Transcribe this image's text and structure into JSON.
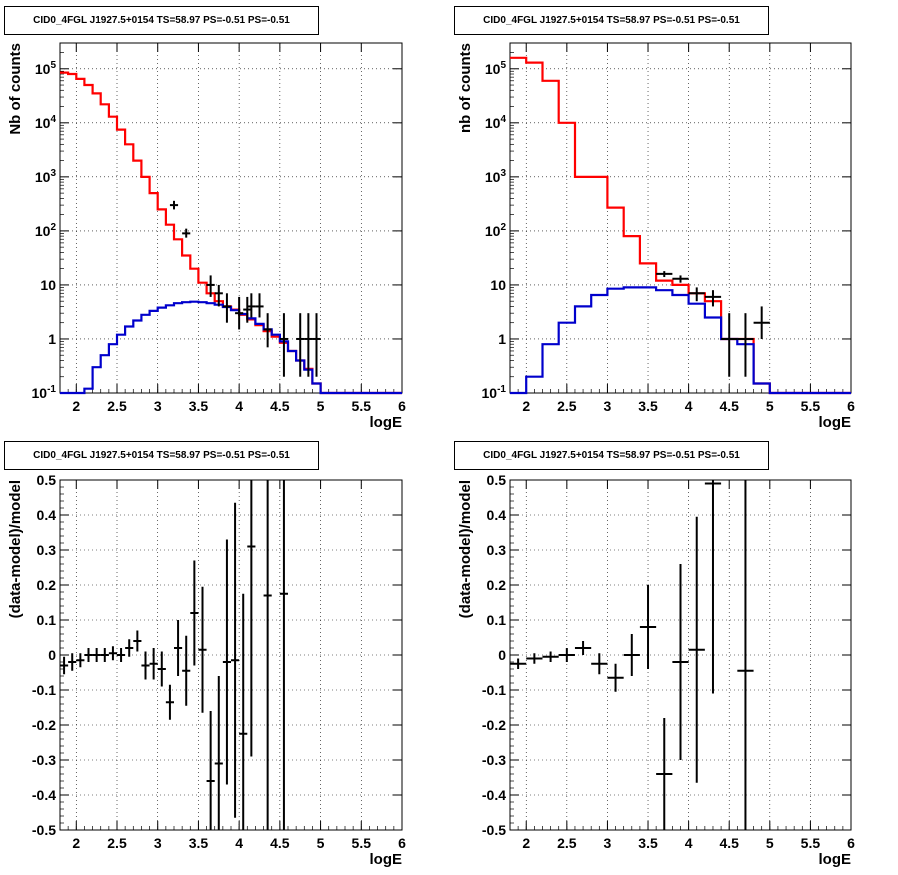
{
  "chart_data": [
    {
      "type": "line",
      "title": "CID0_4FGL J1927.5+0154 TS=58.97 PS=-0.51 PS=-0.51",
      "xlabel": "logE",
      "ylabel": "Nb of counts",
      "yscale": "log",
      "xlim": [
        1.8,
        6.0
      ],
      "ylim": [
        0.1,
        300000
      ],
      "grid": true,
      "x_ticks": [
        "2",
        "2.5",
        "3",
        "3.5",
        "4",
        "4.5",
        "5",
        "5.5",
        "6"
      ],
      "y_ticks": [
        "10^-1",
        "1",
        "10",
        "10^2",
        "10^3",
        "10^4",
        "10^5"
      ],
      "bin_edges": [
        1.8,
        1.9,
        2.0,
        2.1,
        2.2,
        2.3,
        2.4,
        2.5,
        2.6,
        2.7,
        2.8,
        2.9,
        3.0,
        3.1,
        3.2,
        3.3,
        3.4,
        3.5,
        3.6,
        3.7,
        3.8,
        3.9,
        4.0,
        4.1,
        4.2,
        4.3,
        4.4,
        4.5,
        4.6,
        4.7,
        4.8,
        4.9,
        5.0,
        5.1,
        5.2,
        5.3,
        5.4,
        5.5,
        5.6,
        5.7,
        5.8,
        5.9,
        6.0
      ],
      "series": [
        {
          "color": "#ff0000",
          "values": [
            85000,
            80000,
            65000,
            50000,
            35000,
            22000,
            13000,
            7500,
            4000,
            2000,
            1000,
            500,
            250,
            130,
            70,
            35,
            20,
            11,
            7,
            5,
            4,
            3.5,
            2.8,
            2.3,
            1.8,
            1.4,
            1.1,
            0.85,
            0.6,
            0.4,
            0.28,
            0.15,
            0.1,
            0.1,
            0.1,
            0.1,
            0.1,
            0.1,
            0.1,
            0.1,
            0.1,
            0.1
          ]
        },
        {
          "color": "#0000cc",
          "values": [
            0.06,
            0.08,
            0.1,
            0.12,
            0.3,
            0.5,
            0.8,
            1.2,
            1.7,
            2.2,
            2.8,
            3.3,
            3.8,
            4.2,
            4.6,
            4.8,
            4.9,
            4.8,
            4.6,
            4.3,
            3.9,
            3.4,
            2.9,
            2.4,
            1.9,
            1.5,
            1.2,
            0.9,
            0.6,
            0.4,
            0.27,
            0.15,
            0.1,
            0.1,
            0.1,
            0.1,
            0.1,
            0.1,
            0.1,
            0.1,
            0.1,
            0.1
          ]
        }
      ],
      "points": {
        "x": [
          3.2,
          3.35,
          3.65,
          3.75,
          3.85,
          4.0,
          4.1,
          4.15,
          4.25,
          4.35,
          4.55,
          4.75,
          4.85,
          4.95
        ],
        "y": [
          300,
          90,
          10,
          7,
          4,
          3,
          3.5,
          4,
          4,
          1.5,
          1,
          1,
          1,
          1
        ],
        "ylo": [
          250,
          75,
          6,
          4,
          2,
          1.5,
          2,
          2.5,
          2.5,
          0.7,
          0.2,
          0.2,
          0.2,
          0.2
        ],
        "yhi": [
          360,
          110,
          15,
          10,
          7,
          6,
          6,
          7,
          7,
          3,
          3,
          3,
          3,
          3
        ],
        "xerr": 0.05
      }
    },
    {
      "type": "line",
      "title": "CID0_4FGL J1927.5+0154 TS=58.97 PS=-0.51 PS=-0.51",
      "xlabel": "logE",
      "ylabel": "nb of counts",
      "yscale": "log",
      "xlim": [
        1.8,
        6.0
      ],
      "ylim": [
        0.1,
        300000
      ],
      "grid": true,
      "x_ticks": [
        "2",
        "2.5",
        "3",
        "3.5",
        "4",
        "4.5",
        "5",
        "5.5",
        "6"
      ],
      "y_ticks": [
        "10^-1",
        "1",
        "10",
        "10^2",
        "10^3",
        "10^4",
        "10^5"
      ],
      "bin_edges": [
        1.8,
        2.0,
        2.2,
        2.4,
        2.6,
        2.8,
        3.0,
        3.2,
        3.4,
        3.6,
        3.8,
        4.0,
        4.2,
        4.4,
        4.6,
        4.8,
        5.0,
        5.2,
        5.4,
        5.6,
        5.8,
        6.0
      ],
      "series": [
        {
          "color": "#ff0000",
          "values": [
            160000,
            130000,
            60000,
            10000,
            1000,
            1000,
            270,
            80,
            25,
            12,
            10,
            7,
            5,
            1,
            1,
            0.15,
            0.1,
            0.1,
            0.1,
            0.1,
            0.1
          ]
        },
        {
          "color": "#0000cc",
          "values": [
            0.08,
            0.2,
            0.8,
            2,
            4,
            6.5,
            8.5,
            9,
            9,
            8,
            6.5,
            4.5,
            2.5,
            1,
            0.8,
            0.15,
            0.1,
            0.1,
            0.1,
            0.1,
            0.1
          ]
        }
      ],
      "points": {
        "x": [
          3.7,
          3.9,
          4.1,
          4.3,
          4.5,
          4.7,
          4.9
        ],
        "y": [
          16,
          13,
          7,
          6,
          1,
          1,
          2
        ],
        "ylo": [
          14,
          11,
          5,
          4,
          0.2,
          0.2,
          1
        ],
        "yhi": [
          18,
          15,
          9,
          8,
          3,
          3,
          4
        ],
        "xerr": 0.1
      }
    },
    {
      "type": "scatter",
      "title": "CID0_4FGL J1927.5+0154 TS=58.97 PS=-0.51 PS=-0.51",
      "xlabel": "logE",
      "ylabel": "(data-model)/model",
      "xlim": [
        1.8,
        6.0
      ],
      "ylim": [
        -0.5,
        0.5
      ],
      "grid": true,
      "x_ticks": [
        "2",
        "2.5",
        "3",
        "3.5",
        "4",
        "4.5",
        "5",
        "5.5",
        "6"
      ],
      "y_ticks": [
        "-0.5",
        "-0.4",
        "-0.3",
        "-0.2",
        "-0.1",
        "0",
        "0.1",
        "0.2",
        "0.3",
        "0.4",
        "0.5"
      ],
      "points": {
        "x": [
          1.85,
          1.95,
          2.05,
          2.15,
          2.25,
          2.35,
          2.45,
          2.55,
          2.65,
          2.75,
          2.85,
          2.95,
          3.05,
          3.15,
          3.25,
          3.35,
          3.45,
          3.55,
          3.65,
          3.75,
          3.85,
          3.95,
          4.05,
          4.15,
          4.35,
          4.55
        ],
        "y": [
          -0.03,
          -0.02,
          -0.015,
          0.0,
          0.0,
          0.0,
          0.005,
          0.0,
          0.02,
          0.04,
          -0.03,
          -0.025,
          -0.04,
          -0.135,
          0.02,
          -0.045,
          0.12,
          0.015,
          -0.36,
          -0.31,
          -0.02,
          -0.015,
          -0.225,
          0.31,
          0.17,
          0.175
        ],
        "yerr": [
          0.025,
          0.025,
          0.02,
          0.02,
          0.02,
          0.02,
          0.02,
          0.02,
          0.025,
          0.03,
          0.04,
          0.045,
          0.05,
          0.05,
          0.08,
          0.1,
          0.15,
          0.18,
          0.2,
          0.25,
          0.35,
          0.45,
          0.4,
          0.6,
          0.7,
          0.8
        ],
        "xerr": 0.05
      }
    },
    {
      "type": "scatter",
      "title": "CID0_4FGL J1927.5+0154 TS=58.97 PS=-0.51 PS=-0.51",
      "xlabel": "logE",
      "ylabel": "(data-model)/model",
      "xlim": [
        1.8,
        6.0
      ],
      "ylim": [
        -0.5,
        0.5
      ],
      "grid": true,
      "x_ticks": [
        "2",
        "2.5",
        "3",
        "3.5",
        "4",
        "4.5",
        "5",
        "5.5",
        "6"
      ],
      "y_ticks": [
        "-0.5",
        "-0.4",
        "-0.3",
        "-0.2",
        "-0.1",
        "0",
        "0.1",
        "0.2",
        "0.3",
        "0.4",
        "0.5"
      ],
      "points": {
        "x": [
          1.9,
          2.1,
          2.3,
          2.5,
          2.7,
          2.9,
          3.1,
          3.3,
          3.5,
          3.7,
          3.9,
          4.1,
          4.3,
          4.7
        ],
        "y": [
          -0.025,
          -0.01,
          -0.005,
          0.0,
          0.02,
          -0.025,
          -0.065,
          0.0,
          0.08,
          -0.34,
          -0.02,
          0.015,
          0.49,
          -0.045
        ],
        "yerr": [
          0.015,
          0.015,
          0.015,
          0.02,
          0.02,
          0.03,
          0.04,
          0.06,
          0.12,
          0.16,
          0.28,
          0.38,
          0.6,
          0.8
        ],
        "xerr": 0.1
      }
    }
  ]
}
